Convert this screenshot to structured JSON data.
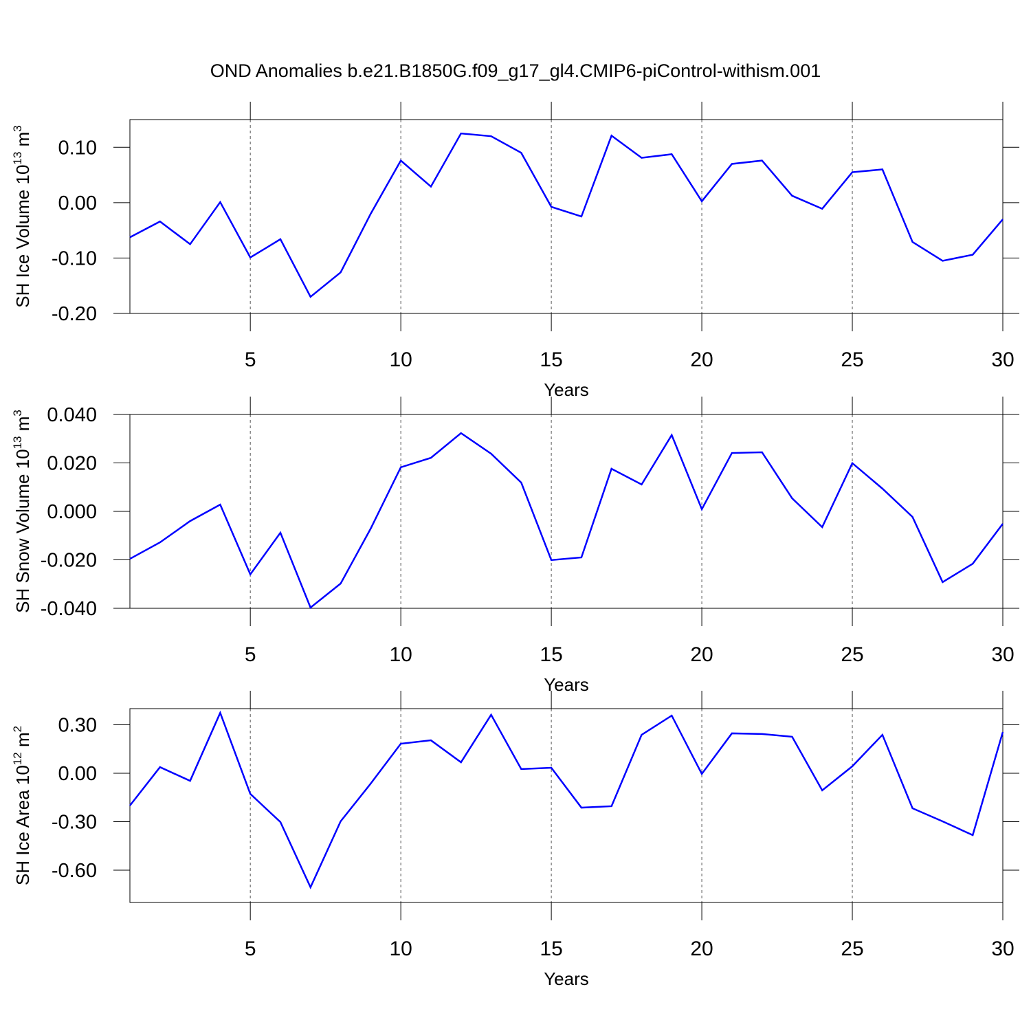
{
  "title": "OND Anomalies b.e21.B1850G.f09_g17_gl4.CMIP6-piControl-withism.001",
  "chart_data": [
    {
      "type": "line",
      "ylabel": [
        "SH Ice Volume 10",
        "13",
        " m",
        "3"
      ],
      "xlabel": "Years",
      "x": [
        1,
        2,
        3,
        4,
        5,
        6,
        7,
        8,
        9,
        10,
        11,
        12,
        13,
        14,
        15,
        16,
        17,
        18,
        19,
        20,
        21,
        22,
        23,
        24,
        25,
        26,
        27,
        28,
        29,
        30
      ],
      "values": [
        -0.0625,
        -0.034,
        -0.075,
        0.001,
        -0.099,
        -0.066,
        -0.17,
        -0.126,
        -0.02,
        0.076,
        0.029,
        0.125,
        0.12,
        0.09,
        -0.0075,
        -0.025,
        0.121,
        0.081,
        0.0875,
        0.0025,
        0.07,
        0.076,
        0.0125,
        -0.011,
        0.055,
        0.06,
        -0.071,
        -0.105,
        -0.094,
        -0.03
      ],
      "color": "#0000ff",
      "xlim": [
        1,
        30
      ],
      "xticks": [
        5,
        10,
        15,
        20,
        25,
        30
      ],
      "xgrid": true,
      "ylim": [
        -0.2,
        0.15
      ],
      "yticks": [
        {
          "value": -0.2,
          "label": "-0.20"
        },
        {
          "value": -0.1,
          "label": "-0.10"
        },
        {
          "value": 0,
          "label": "0.00"
        },
        {
          "value": 0.1,
          "label": "0.10"
        }
      ]
    },
    {
      "type": "line",
      "ylabel": [
        "SH Snow Volume 10",
        "13",
        " m",
        "3"
      ],
      "xlabel": "Years",
      "x": [
        1,
        2,
        3,
        4,
        5,
        6,
        7,
        8,
        9,
        10,
        11,
        12,
        13,
        14,
        15,
        16,
        17,
        18,
        19,
        20,
        21,
        22,
        23,
        24,
        25,
        26,
        27,
        28,
        29,
        30
      ],
      "values": [
        -0.0196,
        -0.0128,
        -0.004,
        0.0028,
        -0.026,
        -0.0088,
        -0.0397,
        -0.0298,
        -0.0071,
        0.0182,
        0.0221,
        0.0323,
        0.0238,
        0.0119,
        -0.0201,
        -0.019,
        0.0176,
        0.0111,
        0.0315,
        0.0009,
        0.0241,
        0.0244,
        0.0054,
        -0.0065,
        0.0199,
        0.0094,
        -0.0023,
        -0.0292,
        -0.0216,
        -0.0051
      ],
      "color": "#0000ff",
      "xlim": [
        1,
        30
      ],
      "xticks": [
        5,
        10,
        15,
        20,
        25,
        30
      ],
      "xgrid": true,
      "ylim": [
        -0.04,
        0.04
      ],
      "yticks": [
        {
          "value": -0.04,
          "label": "-0.040"
        },
        {
          "value": -0.02,
          "label": "-0.020"
        },
        {
          "value": 0,
          "label": "0.000"
        },
        {
          "value": 0.02,
          "label": "0.020"
        },
        {
          "value": 0.04,
          "label": "0.040"
        }
      ]
    },
    {
      "type": "line",
      "ylabel": [
        "SH Ice Area 10",
        "12",
        " m",
        "2"
      ],
      "xlabel": "Years",
      "x": [
        1,
        2,
        3,
        4,
        5,
        6,
        7,
        8,
        9,
        10,
        11,
        12,
        13,
        14,
        15,
        16,
        17,
        18,
        19,
        20,
        21,
        22,
        23,
        24,
        25,
        26,
        27,
        28,
        29,
        30
      ],
      "values": [
        -0.2,
        0.038,
        -0.047,
        0.374,
        -0.128,
        -0.302,
        -0.706,
        -0.298,
        -0.064,
        0.183,
        0.204,
        0.068,
        0.362,
        0.026,
        0.034,
        -0.213,
        -0.204,
        0.238,
        0.357,
        -0.004,
        0.247,
        0.243,
        0.226,
        -0.106,
        0.043,
        0.238,
        -0.217,
        -0.298,
        -0.383,
        0.255
      ],
      "color": "#0000ff",
      "xlim": [
        1,
        30
      ],
      "xticks": [
        5,
        10,
        15,
        20,
        25,
        30
      ],
      "xgrid": true,
      "ylim": [
        -0.8,
        0.4
      ],
      "yticks": [
        {
          "value": -0.6,
          "label": "-0.60"
        },
        {
          "value": -0.3,
          "label": "-0.30"
        },
        {
          "value": 0,
          "label": "0.00"
        },
        {
          "value": 0.3,
          "label": "0.30"
        }
      ]
    }
  ]
}
